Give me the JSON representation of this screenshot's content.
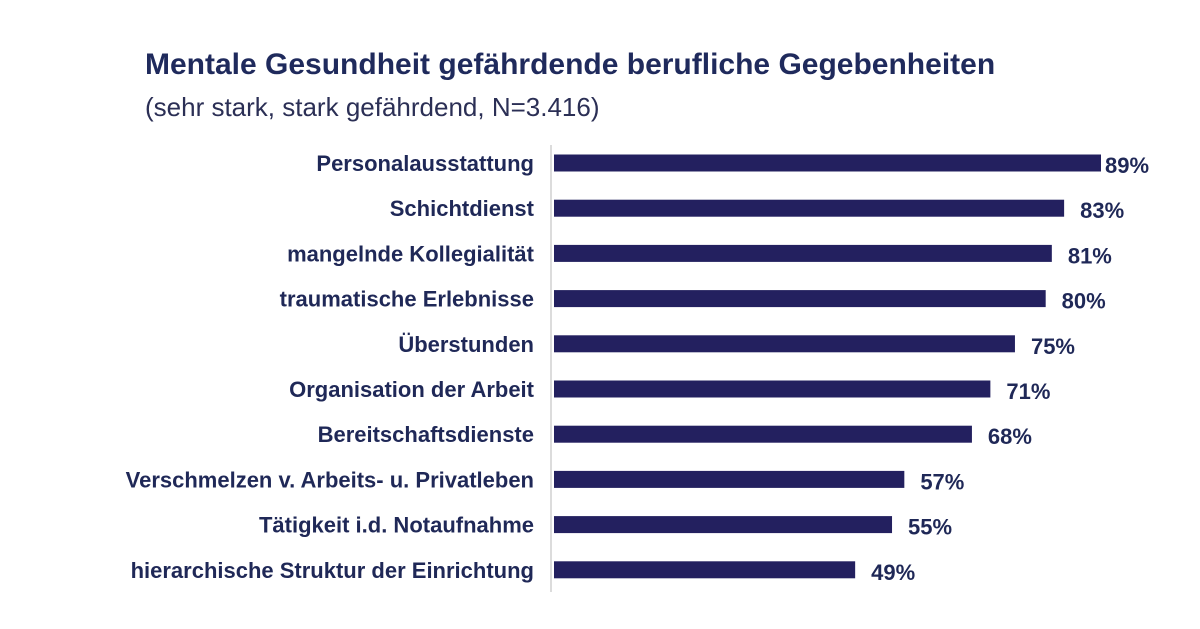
{
  "chart_data": {
    "type": "bar",
    "orientation": "horizontal",
    "title": "Mentale Gesundheit gefährdende berufliche Gegebenheiten",
    "subtitle": "(sehr stark, stark gefährdend, N=3.416)",
    "categories": [
      "Personalausstattung",
      "Schichtdienst",
      "mangelnde Kollegialität",
      "traumatische Erlebnisse",
      "Überstunden",
      "Organisation der Arbeit",
      "Bereitschaftsdienste",
      "Verschmelzen v. Arbeits- u. Privatleben",
      "Tätigkeit i.d. Notaufnahme",
      "hierarchische Struktur der Einrichtung"
    ],
    "values": [
      89,
      83,
      81,
      80,
      75,
      71,
      68,
      57,
      55,
      49
    ],
    "value_labels": [
      "89%",
      "83%",
      "81%",
      "80%",
      "75%",
      "71%",
      "68%",
      "57%",
      "55%",
      "49%"
    ],
    "xlim": [
      0,
      89
    ],
    "grid": false,
    "legend": "none",
    "colors": {
      "bar": "#23205f",
      "text": "#1f2857",
      "axis": "#d0d0d0"
    }
  }
}
